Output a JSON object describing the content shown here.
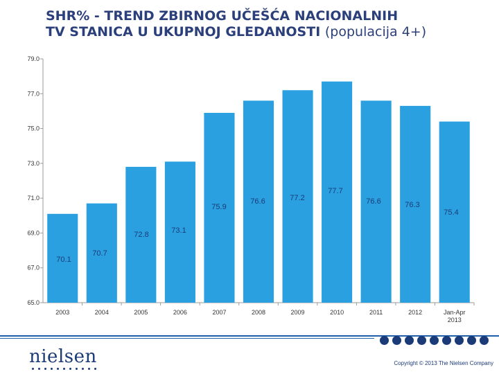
{
  "title": {
    "main_line1": "SHR% - TREND ZBIRNOG UČEŠĆA NACIONALNIH",
    "main_line2": "TV STANICA U UKUPNOJ GLEDANOSTI ",
    "sub": "(populacija 4+)"
  },
  "chart_data": {
    "type": "bar",
    "categories": [
      "2003",
      "2004",
      "2005",
      "2006",
      "2007",
      "2008",
      "2009",
      "2010",
      "2011",
      "2012",
      "Jan-Apr 2013"
    ],
    "values": [
      70.1,
      70.7,
      72.8,
      73.1,
      75.9,
      76.6,
      77.2,
      77.7,
      76.6,
      76.3,
      75.4
    ],
    "data_labels": [
      "70.1",
      "70.7",
      "72.8",
      "73.1",
      "75.9",
      "76.6",
      "77.2",
      "77.7",
      "76.6",
      "76.3",
      "75.4"
    ],
    "y_ticks": [
      "79.0",
      "77.0",
      "75.0",
      "73.0",
      "71.0",
      "69.0",
      "67.0",
      "65.0"
    ],
    "ylim": [
      65,
      79
    ],
    "bar_color": "#2aa0e0",
    "label_color": "#1b3a78",
    "grid": false,
    "legend": "none"
  },
  "footer": {
    "logo_text": "nielsen",
    "copyright": "Copyright © 2013 The Nielsen Company",
    "accent_color": "#1b3a78"
  }
}
